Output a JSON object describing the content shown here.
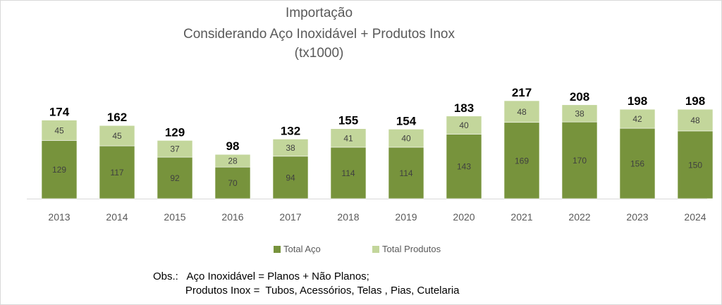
{
  "chart_data": {
    "type": "bar",
    "stacked": true,
    "title": [
      "Importação",
      "Considerando Aço Inoxidável + Produtos Inox",
      "(tx1000)"
    ],
    "xlabel": "",
    "ylabel": "",
    "categories": [
      "2013",
      "2014",
      "2015",
      "2016",
      "2017",
      "2018",
      "2019",
      "2020",
      "2021",
      "2022",
      "2023",
      "2024"
    ],
    "series": [
      {
        "name": "Total Aço",
        "color": "#77933C",
        "values": [
          129,
          117,
          92,
          70,
          94,
          114,
          114,
          143,
          169,
          170,
          156,
          150
        ]
      },
      {
        "name": "Total Produtos",
        "color": "#C3D69B",
        "values": [
          45,
          45,
          37,
          28,
          38,
          41,
          40,
          40,
          48,
          38,
          42,
          48
        ]
      }
    ],
    "totals": [
      174,
      162,
      129,
      98,
      132,
      155,
      154,
      183,
      217,
      208,
      198,
      198
    ],
    "ylim": [
      0,
      220
    ],
    "grid": false,
    "legend_position": "bottom"
  },
  "notes": {
    "line1": "Obs.:   Aço Inoxidável = Planos + Não Planos;",
    "line2": "           Produtos Inox =  Tubos, Acessórios, Telas , Pias, Cutelaria"
  }
}
